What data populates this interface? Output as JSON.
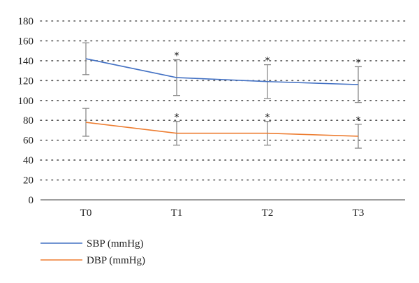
{
  "chart_data": {
    "type": "line",
    "title": "",
    "xlabel": "",
    "ylabel": "",
    "categories": [
      "T0",
      "T1",
      "T2",
      "T3"
    ],
    "ylim": [
      0,
      180
    ],
    "yticks": [
      0,
      20,
      40,
      60,
      80,
      100,
      120,
      140,
      160,
      180
    ],
    "grid": "horizontal dotted",
    "legend_position": "bottom-left",
    "significance_marker": "*",
    "series": [
      {
        "name": "SBP (mmHg)",
        "color": "#4472c4",
        "values": [
          142,
          123,
          119,
          116
        ],
        "error": [
          16,
          18,
          17,
          18
        ],
        "significant": [
          false,
          true,
          true,
          true
        ]
      },
      {
        "name": "DBP (mmHg)",
        "color": "#ed7d31",
        "values": [
          78,
          67,
          67,
          64
        ],
        "error": [
          14,
          12,
          12,
          12
        ],
        "significant": [
          false,
          true,
          true,
          true
        ]
      }
    ]
  }
}
